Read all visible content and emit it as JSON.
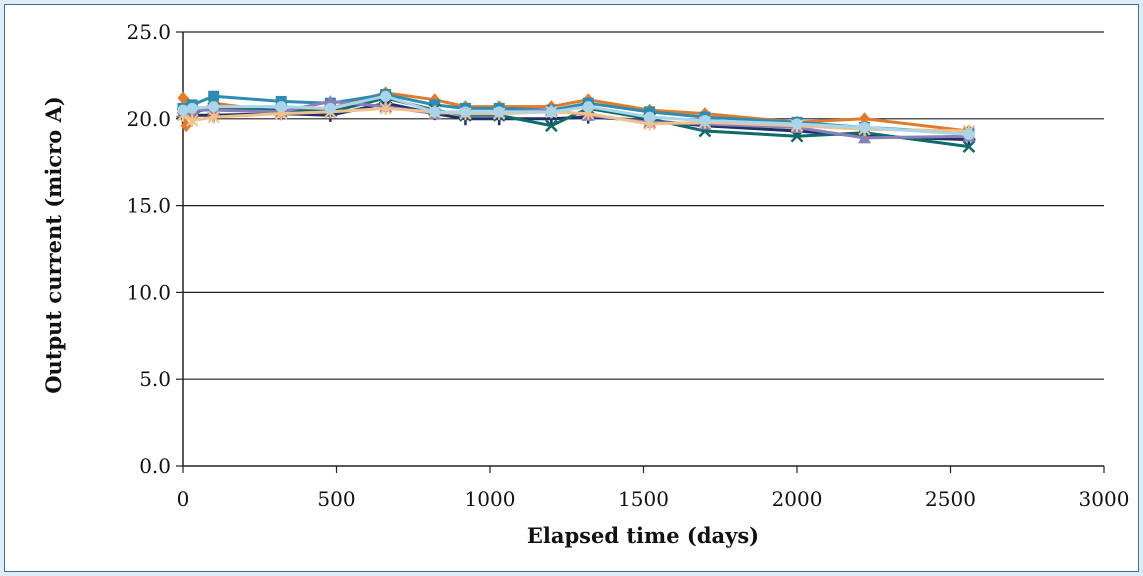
{
  "chart_data": {
    "type": "line",
    "title": "",
    "xlabel": "Elapsed time (days)",
    "ylabel": "Output current (micro A)",
    "xlim": [
      0,
      3000
    ],
    "ylim": [
      0,
      25
    ],
    "x_ticks": [
      "0",
      "500",
      "1000",
      "1500",
      "2000",
      "2500",
      "3000"
    ],
    "y_ticks": [
      "0.0",
      "5.0",
      "10.0",
      "15.0",
      "20.0",
      "25.0"
    ],
    "grid": "horizontal",
    "legend": "none",
    "series": [
      {
        "color": "#1f2f6b",
        "marker": "plus",
        "x": [
          0,
          10,
          30,
          100,
          320,
          480,
          660,
          820,
          920,
          1030,
          1200,
          1320,
          1520,
          1700,
          2000,
          2220,
          2560
        ],
        "y": [
          20.1,
          20.3,
          20.2,
          20.2,
          20.3,
          20.2,
          20.9,
          20.3,
          20.0,
          20.0,
          20.0,
          20.1,
          19.9,
          19.6,
          19.3,
          19.0,
          18.8
        ]
      },
      {
        "color": "#e07b2a",
        "marker": "diamond",
        "x": [
          0,
          5,
          10,
          15,
          20,
          30,
          100,
          320,
          480,
          660,
          820,
          920,
          1030,
          1200,
          1320,
          1520,
          1700,
          2000,
          2220,
          2560
        ],
        "y": [
          21.2,
          20.6,
          19.6,
          20.9,
          20.4,
          20.2,
          20.9,
          20.4,
          20.6,
          21.5,
          21.1,
          20.7,
          20.7,
          20.7,
          21.1,
          20.5,
          20.3,
          19.8,
          20.0,
          19.3
        ]
      },
      {
        "color": "#2e8bb2",
        "marker": "square",
        "x": [
          0,
          30,
          100,
          320,
          480,
          660,
          820,
          920,
          1030,
          1200,
          1320,
          1520,
          1700,
          2000,
          2220,
          2560
        ],
        "y": [
          20.6,
          20.8,
          21.3,
          21.0,
          20.9,
          21.4,
          20.8,
          20.6,
          20.6,
          20.5,
          20.9,
          20.4,
          20.1,
          19.8,
          19.5,
          19.2
        ]
      },
      {
        "color": "#0f6b68",
        "marker": "x",
        "x": [
          0,
          30,
          100,
          320,
          480,
          660,
          820,
          920,
          1030,
          1200,
          1320,
          1520,
          1700,
          2000,
          2220,
          2560
        ],
        "y": [
          20.3,
          20.4,
          20.6,
          20.5,
          20.4,
          21.2,
          20.5,
          20.2,
          20.2,
          19.6,
          20.6,
          20.0,
          19.3,
          19.0,
          19.2,
          18.4
        ]
      },
      {
        "color": "#8a7fb8",
        "marker": "triangle",
        "x": [
          0,
          30,
          100,
          320,
          480,
          660,
          820,
          920,
          1030,
          1200,
          1320,
          1520,
          1700,
          2000,
          2220,
          2560
        ],
        "y": [
          20.4,
          20.5,
          20.5,
          20.4,
          21.0,
          20.7,
          20.3,
          20.4,
          20.4,
          20.5,
          20.2,
          19.8,
          19.7,
          19.5,
          18.9,
          19.0
        ]
      },
      {
        "color": "#f2c08a",
        "marker": "star",
        "x": [
          0,
          30,
          100,
          320,
          480,
          660,
          820,
          920,
          1030,
          1200,
          1320,
          1520,
          1700,
          2000,
          2220,
          2560
        ],
        "y": [
          20.2,
          19.9,
          20.1,
          20.3,
          20.4,
          20.6,
          20.4,
          20.3,
          20.3,
          20.4,
          20.3,
          19.7,
          19.8,
          19.6,
          19.4,
          19.3
        ]
      },
      {
        "color": "#a9d4ea",
        "marker": "circle",
        "x": [
          0,
          30,
          100,
          320,
          480,
          660,
          820,
          920,
          1030,
          1200,
          1320,
          1520,
          1700,
          2000,
          2220,
          2560
        ],
        "y": [
          20.5,
          20.6,
          20.7,
          20.7,
          20.6,
          21.3,
          20.4,
          20.4,
          20.4,
          20.4,
          20.7,
          20.1,
          19.9,
          19.7,
          19.5,
          19.1
        ]
      }
    ]
  }
}
